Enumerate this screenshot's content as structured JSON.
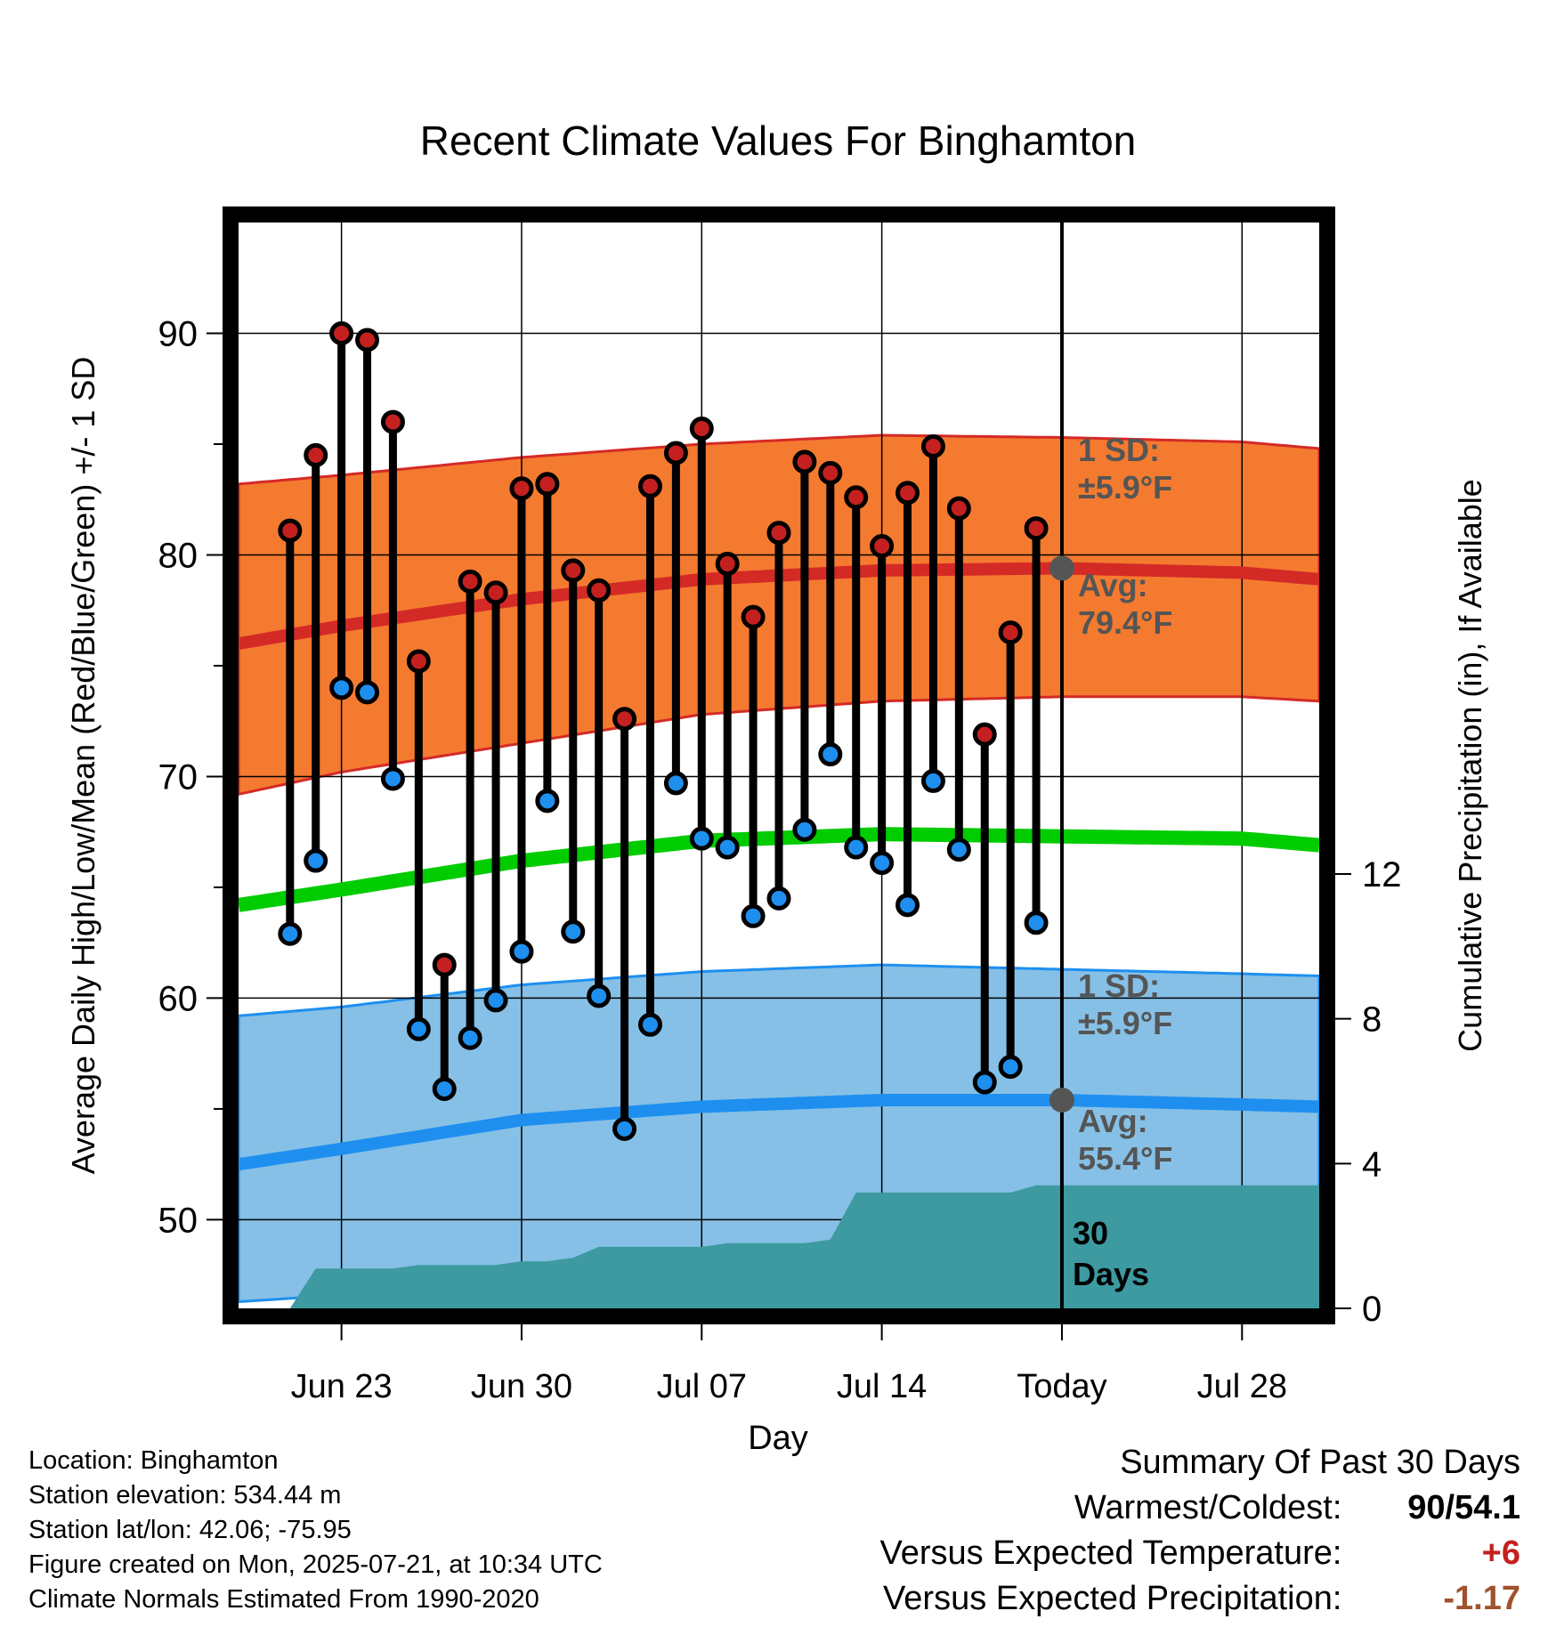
{
  "chart_data": {
    "type": "line",
    "title": "Recent Climate Values For Binghamton",
    "xlabel": "Day",
    "ylabel": "Average Daily High/Low/Mean (Red/Blue/Green) +/- 1 SD",
    "y2label": "Cumulative Precipitation (in), If Available",
    "ylim": [
      46,
      95
    ],
    "y2lim": [
      0,
      30
    ],
    "xlim": [
      "2025-06-19",
      "2025-07-31"
    ],
    "x_tick_labels": [
      "Jun 23",
      "Jun 30",
      "Jul 07",
      "Jul 14",
      "Today",
      "Jul 28"
    ],
    "x_tick_dates": [
      "2025-06-23",
      "2025-06-30",
      "2025-07-07",
      "2025-07-14",
      "2025-07-21",
      "2025-07-28"
    ],
    "y_tick_labels": [
      "50",
      "60",
      "70",
      "80",
      "90"
    ],
    "y2_tick_labels": [
      "0",
      "4",
      "8",
      "12"
    ],
    "grid": true,
    "today": "2025-07-21",
    "days": [
      "2025-06-21",
      "2025-06-22",
      "2025-06-23",
      "2025-06-24",
      "2025-06-25",
      "2025-06-26",
      "2025-06-27",
      "2025-06-28",
      "2025-06-29",
      "2025-06-30",
      "2025-07-01",
      "2025-07-02",
      "2025-07-03",
      "2025-07-04",
      "2025-07-05",
      "2025-07-06",
      "2025-07-07",
      "2025-07-08",
      "2025-07-09",
      "2025-07-10",
      "2025-07-11",
      "2025-07-12",
      "2025-07-13",
      "2025-07-14",
      "2025-07-15",
      "2025-07-16",
      "2025-07-17",
      "2025-07-18",
      "2025-07-19",
      "2025-07-20"
    ],
    "daily_high": [
      81.1,
      84.5,
      90.0,
      89.7,
      86.0,
      75.2,
      61.5,
      78.8,
      78.3,
      83.0,
      83.2,
      79.3,
      78.4,
      72.6,
      83.1,
      84.6,
      85.7,
      79.6,
      77.2,
      81.0,
      84.2,
      83.7,
      82.6,
      80.4,
      82.8,
      84.9,
      82.1,
      71.9,
      76.5,
      81.2
    ],
    "daily_low": [
      62.9,
      66.2,
      74.0,
      73.8,
      69.9,
      58.6,
      55.9,
      58.2,
      59.9,
      62.1,
      68.9,
      63.0,
      60.1,
      54.1,
      58.8,
      69.7,
      67.2,
      66.8,
      63.7,
      64.5,
      67.6,
      71.0,
      66.8,
      66.1,
      64.2,
      69.8,
      66.7,
      56.2,
      56.9,
      63.4
    ],
    "normals": {
      "dates": [
        "2025-06-19",
        "2025-06-23",
        "2025-06-30",
        "2025-07-07",
        "2025-07-14",
        "2025-07-21",
        "2025-07-28",
        "2025-07-31"
      ],
      "high_avg": [
        76.0,
        76.8,
        78.0,
        78.9,
        79.3,
        79.4,
        79.2,
        78.9
      ],
      "high_plus_sd": [
        83.2,
        83.6,
        84.4,
        85.0,
        85.4,
        85.3,
        85.1,
        84.8
      ],
      "high_minus_sd": [
        69.2,
        70.2,
        71.5,
        72.8,
        73.4,
        73.6,
        73.6,
        73.4
      ],
      "mean_avg": [
        64.2,
        64.9,
        66.2,
        67.1,
        67.4,
        67.3,
        67.2,
        66.9
      ],
      "low_avg": [
        52.5,
        53.2,
        54.5,
        55.1,
        55.4,
        55.4,
        55.2,
        55.1
      ],
      "low_plus_sd": [
        59.2,
        59.6,
        60.6,
        61.2,
        61.5,
        61.3,
        61.1,
        61.0
      ],
      "low_minus_sd": [
        46.3,
        46.6,
        47.3,
        47.8,
        48.0,
        48.1,
        48.1,
        48.1
      ]
    },
    "cumulative_precip": {
      "dates": [
        "2025-06-19",
        "2025-06-20",
        "2025-06-21",
        "2025-06-22",
        "2025-06-23",
        "2025-06-24",
        "2025-06-25",
        "2025-06-26",
        "2025-06-27",
        "2025-06-28",
        "2025-06-29",
        "2025-06-30",
        "2025-07-01",
        "2025-07-02",
        "2025-07-03",
        "2025-07-04",
        "2025-07-05",
        "2025-07-06",
        "2025-07-07",
        "2025-07-08",
        "2025-07-09",
        "2025-07-10",
        "2025-07-11",
        "2025-07-12",
        "2025-07-13",
        "2025-07-14",
        "2025-07-15",
        "2025-07-16",
        "2025-07-17",
        "2025-07-18",
        "2025-07-19",
        "2025-07-20",
        "2025-07-21",
        "2025-07-31"
      ],
      "values": [
        0,
        0,
        0,
        1.1,
        1.1,
        1.1,
        1.1,
        1.2,
        1.2,
        1.2,
        1.2,
        1.3,
        1.3,
        1.4,
        1.7,
        1.7,
        1.7,
        1.7,
        1.7,
        1.8,
        1.8,
        1.8,
        1.8,
        1.9,
        3.2,
        3.2,
        3.2,
        3.2,
        3.2,
        3.2,
        3.2,
        3.4,
        3.4,
        3.4
      ]
    },
    "annotations": {
      "high_sd_label": "1 SD:",
      "high_sd_value": "±5.9°F",
      "high_avg_label": "Avg:",
      "high_avg_value": "79.4°F",
      "low_sd_label": "1 SD:",
      "low_sd_value": "±5.9°F",
      "low_avg_label": "Avg:",
      "low_avg_value": "55.4°F",
      "days_line1": "30",
      "days_line2": "Days"
    },
    "colors": {
      "high_band": "#f47a30",
      "high_line": "#d42a26",
      "high_point": "#c42020",
      "low_band": "#86c0e6",
      "low_line": "#1e8fef",
      "low_point": "#1e8fef",
      "mean_line": "#00cc00",
      "precip": "#3c9aa0",
      "annotation": "#555555"
    }
  },
  "info": {
    "location": "Location: Binghamton",
    "elevation": "Station elevation: 534.44 m",
    "latlon": "Station lat/lon: 42.06; -75.95",
    "created": "Figure created on Mon, 2025-07-21, at 10:34 UTC",
    "normals": "Climate Normals Estimated From 1990-2020"
  },
  "summary": {
    "title": "Summary Of Past 30 Days",
    "warmest_label": "Warmest/Coldest:",
    "warmest_value": "90/54.1",
    "temp_label": "Versus Expected Temperature:",
    "temp_value": "+6",
    "temp_color": "#c42020",
    "precip_label": "Versus Expected Precipitation:",
    "precip_value": "-1.17",
    "precip_color": "#a0522d"
  }
}
